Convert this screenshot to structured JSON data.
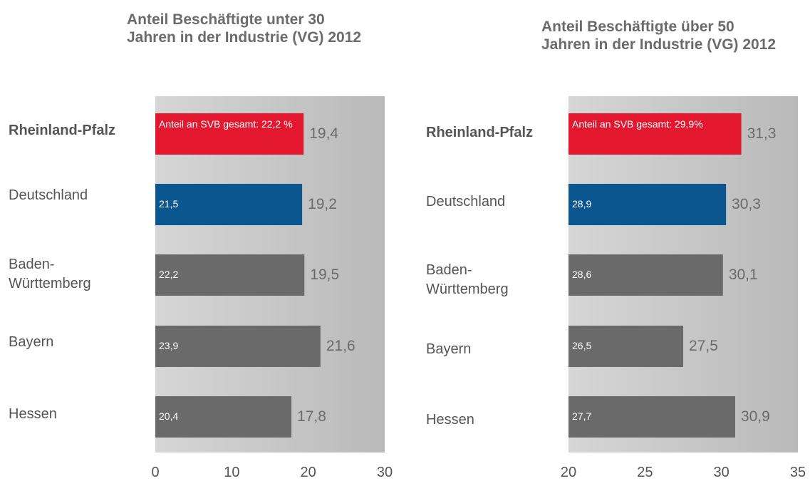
{
  "chart_data": [
    {
      "type": "bar",
      "orientation": "horizontal",
      "title": "Anteil Beschäftigte unter 30 Jahren in der Industrie (VG) 2012",
      "categories": [
        "Rheinland-Pfalz",
        "Deutschland",
        "Baden-Württemberg",
        "Bayern",
        "Hessen"
      ],
      "values": [
        19.4,
        19.2,
        19.5,
        21.6,
        17.8
      ],
      "value_labels": [
        "19,4",
        "19,2",
        "19,5",
        "21,6",
        "17,8"
      ],
      "inner_labels": [
        "Anteil an SVB gesamt: 22,2 %",
        "21,5",
        "22,2",
        "23,9",
        "20,4"
      ],
      "colors": [
        "#e3182f",
        "#0c5690",
        "#6a6a6a",
        "#6a6a6a",
        "#6a6a6a"
      ],
      "xlim": [
        0,
        30
      ],
      "xticks": [
        0,
        10,
        20,
        30
      ]
    },
    {
      "type": "bar",
      "orientation": "horizontal",
      "title": "Anteil Beschäftigte über 50 Jahren in der Industrie (VG) 2012",
      "categories": [
        "Rheinland-Pfalz",
        "Deutschland",
        "Baden-Württemberg",
        "Bayern",
        "Hessen"
      ],
      "values": [
        31.3,
        30.3,
        30.1,
        27.5,
        30.9
      ],
      "value_labels": [
        "31,3",
        "30,3",
        "30,1",
        "27,5",
        "30,9"
      ],
      "inner_labels": [
        "Anteil an SVB gesamt: 29,9%",
        "28,9",
        "28,6",
        "26,5",
        "27,7"
      ],
      "colors": [
        "#e3182f",
        "#0c5690",
        "#6a6a6a",
        "#6a6a6a",
        "#6a6a6a"
      ],
      "xlim": [
        20,
        35
      ],
      "xticks": [
        20,
        25,
        30,
        35
      ]
    }
  ]
}
